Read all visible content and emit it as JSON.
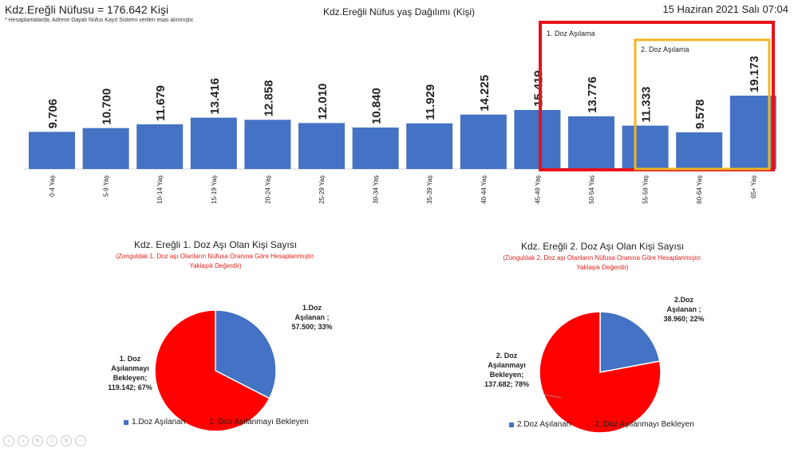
{
  "header": {
    "population_title": "Kdz.Ereğli Nüfusu = 176.642 Kişi",
    "note": "* Hesaplamalarda, Adrese Dayalı Nüfus Kayıt Sistemi verileri esas alınmıştır.",
    "datetime": "15 Haziran 2021 Salı 07:04"
  },
  "annotations": {
    "box1_label": "1. Doz Aşılama",
    "box2_label": "2. Doz Aşılama",
    "box1_color": "#e8121a",
    "box2_color": "#f2b420"
  },
  "colors": {
    "blue": "#4472c4",
    "red": "#ff0000"
  },
  "chart_data": [
    {
      "type": "bar",
      "title": "Kdz.Ereğli Nüfus yaş Dağılımı (Kişi)",
      "categories": [
        "0-4 Yaş",
        "5-9 Yaş",
        "10-14 Yaş",
        "15-19 Yaş",
        "20-24 Yaş",
        "25-29 Yaş",
        "30-34 Yaş",
        "35-39 Yaş",
        "40-44 Yaş",
        "45-49 Yaş",
        "50-54 Yaş",
        "55-59 Yaş",
        "60-64 Yaş",
        "65+ Yaş"
      ],
      "values": [
        9706,
        10700,
        11679,
        13416,
        12858,
        12010,
        10840,
        11929,
        14225,
        15419,
        13776,
        11333,
        9578,
        19173
      ],
      "value_labels": [
        "9.706",
        "10.700",
        "11.679",
        "13.416",
        "12.858",
        "12.010",
        "10.840",
        "11.929",
        "14.225",
        "15.419",
        "13.776",
        "11.333",
        "9.578",
        "19.173"
      ],
      "ylim": [
        0,
        40000
      ],
      "grid": false
    },
    {
      "type": "pie",
      "title": "Kdz. Ereğli 1. Doz Aşı Olan Kişi Sayısı",
      "subtitle_line1": "(Zonguldak 1. Doz aşı Olanların Nüfusa Oranına Göre Hesaplanmıştır.",
      "subtitle_line2": "Yaklaşık Değerdir)",
      "slices": [
        {
          "name": "1.Doz Aşılanan",
          "value": 57500,
          "percent": 33,
          "label_lines": [
            "1.Doz",
            "Aşılanan ;",
            "57.500; 33%"
          ],
          "color": "#4472c4"
        },
        {
          "name": "1. Doz Aşılanmayı Bekleyen",
          "value": 119142,
          "percent": 67,
          "label_lines": [
            "1. Doz",
            "Aşılanmayı",
            "Bekleyen;",
            "119.142; 67%"
          ],
          "color": "#ff0000"
        }
      ],
      "legend_position": "bottom"
    },
    {
      "type": "pie",
      "title": "Kdz. Ereğli 2. Doz Aşı Olan Kişi Sayısı",
      "subtitle_line1": "(Zonguldak 2. Doz aşı Olanların Nüfusa Oranına Göre Hesaplanmıştır.",
      "subtitle_line2": "Yaklaşık Değerdir)",
      "slices": [
        {
          "name": "2.Doz Aşılanan",
          "value": 38960,
          "percent": 22,
          "label_lines": [
            "2.Doz",
            "Aşılanan ;",
            "38.960; 22%"
          ],
          "color": "#4472c4"
        },
        {
          "name": "2. Doz Aşılanmayı Bekleyen",
          "value": 137682,
          "percent": 78,
          "label_lines": [
            "2. Doz",
            "Aşılanmayı",
            "Bekleyen;",
            "137.682; 78%"
          ],
          "color": "#ff0000"
        }
      ],
      "legend_position": "bottom"
    }
  ]
}
